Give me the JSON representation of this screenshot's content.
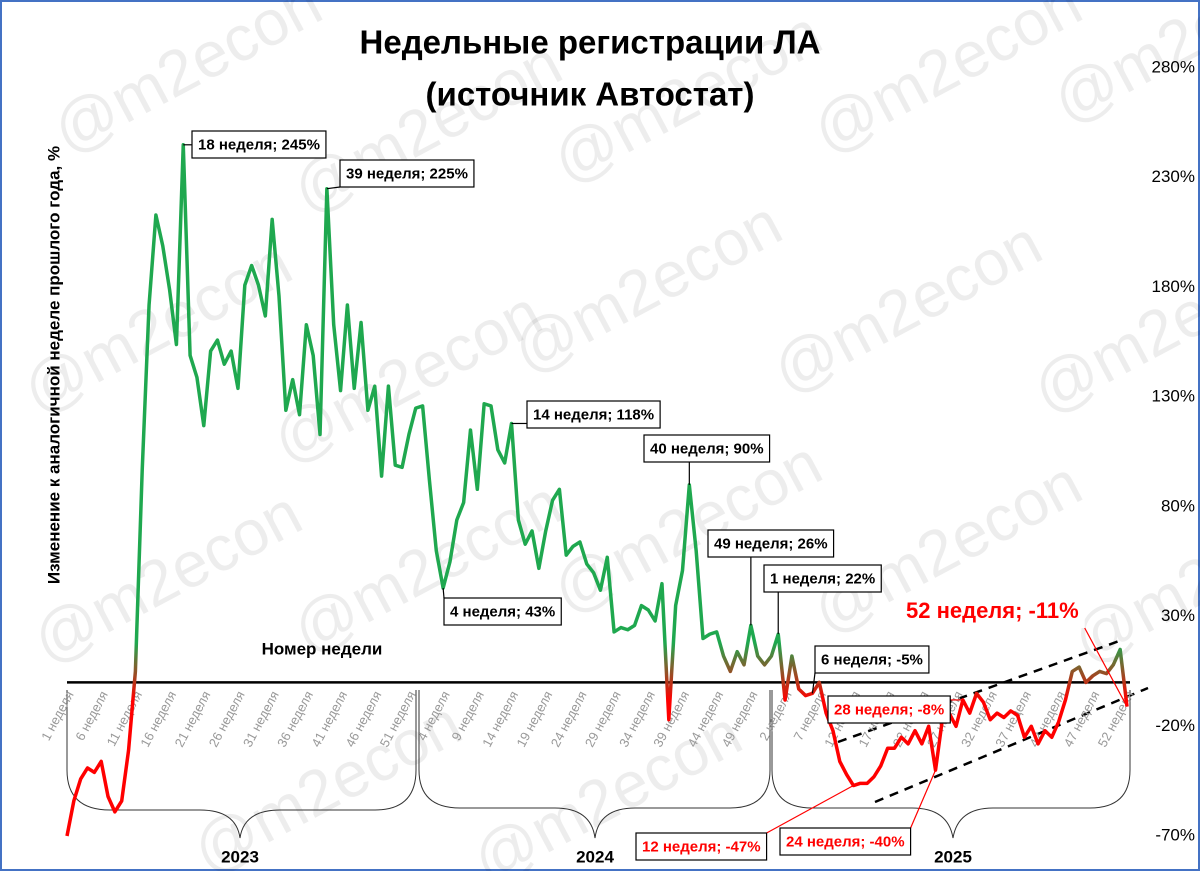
{
  "chart_data": {
    "type": "line",
    "title": "Недельные регистрации ЛА",
    "subtitle": "(источник Автостат)",
    "y_axis_label": "Изменение к аналогичной  неделе прошлого года, %",
    "x_axis_label": "Номер недели",
    "watermark": "@m2econ",
    "years": [
      "2023",
      "2024",
      "2025"
    ],
    "line_colors": {
      "positive": "#1fa84f",
      "negative": "#ff0000"
    },
    "ylim": [
      -70,
      280
    ],
    "yticks": [
      {
        "value": -70,
        "label": "-70%"
      },
      {
        "value": -20,
        "label": "-20%"
      },
      {
        "value": 30,
        "label": "30%"
      },
      {
        "value": 80,
        "label": "80%"
      },
      {
        "value": 130,
        "label": "130%"
      },
      {
        "value": 180,
        "label": "180%"
      },
      {
        "value": 230,
        "label": "230%"
      },
      {
        "value": 280,
        "label": "280%"
      }
    ],
    "categories": [
      "1 неделя",
      null,
      null,
      null,
      null,
      "6 неделя",
      null,
      null,
      null,
      null,
      "11 неделя",
      null,
      null,
      null,
      null,
      "16 неделя",
      null,
      null,
      null,
      null,
      "21 неделя",
      null,
      null,
      null,
      null,
      "26 неделя",
      null,
      null,
      null,
      null,
      "31 неделя",
      null,
      null,
      null,
      null,
      "36 неделя",
      null,
      null,
      null,
      null,
      "41 неделя",
      null,
      null,
      null,
      null,
      "46 неделя",
      null,
      null,
      null,
      null,
      "51 неделя",
      null,
      null,
      null,
      null,
      "4 неделя",
      null,
      null,
      null,
      null,
      "9 неделя",
      null,
      null,
      null,
      null,
      "14 неделя",
      null,
      null,
      null,
      null,
      "19 неделя",
      null,
      null,
      null,
      null,
      "24 неделя",
      null,
      null,
      null,
      null,
      "29 неделя",
      null,
      null,
      null,
      null,
      "34 неделя",
      null,
      null,
      null,
      null,
      "39 неделя",
      null,
      null,
      null,
      null,
      "44 неделя",
      null,
      null,
      null,
      null,
      "49 неделя",
      null,
      null,
      null,
      null,
      "2 неделя",
      null,
      null,
      null,
      null,
      "7 неделя",
      null,
      null,
      null,
      null,
      "12 неделя",
      null,
      null,
      null,
      null,
      "17 неделя",
      null,
      null,
      null,
      null,
      "22 неделя",
      null,
      null,
      null,
      null,
      "27 неделя",
      null,
      null,
      null,
      null,
      "32 неделя",
      null,
      null,
      null,
      null,
      "37 неделя",
      null,
      null,
      null,
      null,
      "42 неделя",
      null,
      null,
      null,
      null,
      "47 неделя",
      null,
      null,
      null,
      null,
      "52 неделя"
    ],
    "values": [
      -70,
      -54,
      -44,
      -39,
      -41,
      -36,
      -52,
      -59,
      -54,
      -31,
      5,
      97,
      172,
      213,
      199,
      179,
      154,
      245,
      149,
      139,
      117,
      151,
      156,
      145,
      151,
      134,
      181,
      190,
      181,
      167,
      211,
      176,
      124,
      138,
      122,
      163,
      149,
      113,
      225,
      163,
      133,
      172,
      134,
      164,
      124,
      135,
      94,
      135,
      99,
      98,
      113,
      125,
      126,
      92,
      60,
      43,
      55,
      74,
      82,
      115,
      88,
      127,
      126,
      106,
      100,
      118,
      74,
      63,
      69,
      52,
      69,
      83,
      88,
      58,
      62,
      64,
      54,
      50,
      42,
      57,
      23,
      25,
      24,
      26,
      35,
      33,
      28,
      45,
      -17,
      35,
      51,
      90,
      60,
      20,
      22,
      23,
      12,
      5,
      14,
      8,
      26,
      12,
      8,
      12,
      22,
      -8,
      12,
      -3,
      -6,
      -5,
      0,
      -14,
      -22,
      -36,
      -42,
      -47,
      -46,
      -46,
      -43,
      -38,
      -30,
      -30,
      -25,
      -28,
      -22,
      -28,
      -20,
      -40,
      -17,
      -14,
      -20,
      -8,
      -14,
      -5,
      -9,
      -17,
      -14,
      -16,
      -13,
      -15,
      -25,
      -20,
      -28,
      -22,
      -25,
      -18,
      -8,
      5,
      7,
      0,
      3,
      5,
      4,
      8,
      15,
      -11
    ],
    "annotations": [
      {
        "text": "18 неделя; 245%",
        "color": "#000000"
      },
      {
        "text": "39 неделя; 225%",
        "color": "#000000"
      },
      {
        "text": "14 неделя; 118%",
        "color": "#000000"
      },
      {
        "text": "40 неделя; 90%",
        "color": "#000000"
      },
      {
        "text": "4 неделя; 43%",
        "color": "#000000"
      },
      {
        "text": "49 неделя; 26%",
        "color": "#000000"
      },
      {
        "text": "1 неделя; 22%",
        "color": "#000000"
      },
      {
        "text": "6 неделя; -5%",
        "color": "#000000"
      },
      {
        "text": "28 неделя; -8%",
        "color": "#ff0000"
      },
      {
        "text": "12 неделя; -47%",
        "color": "#ff0000"
      },
      {
        "text": "24 неделя; -40%",
        "color": "#ff0000"
      },
      {
        "text": "52 неделя; -11%",
        "color": "#ff0000"
      }
    ]
  }
}
